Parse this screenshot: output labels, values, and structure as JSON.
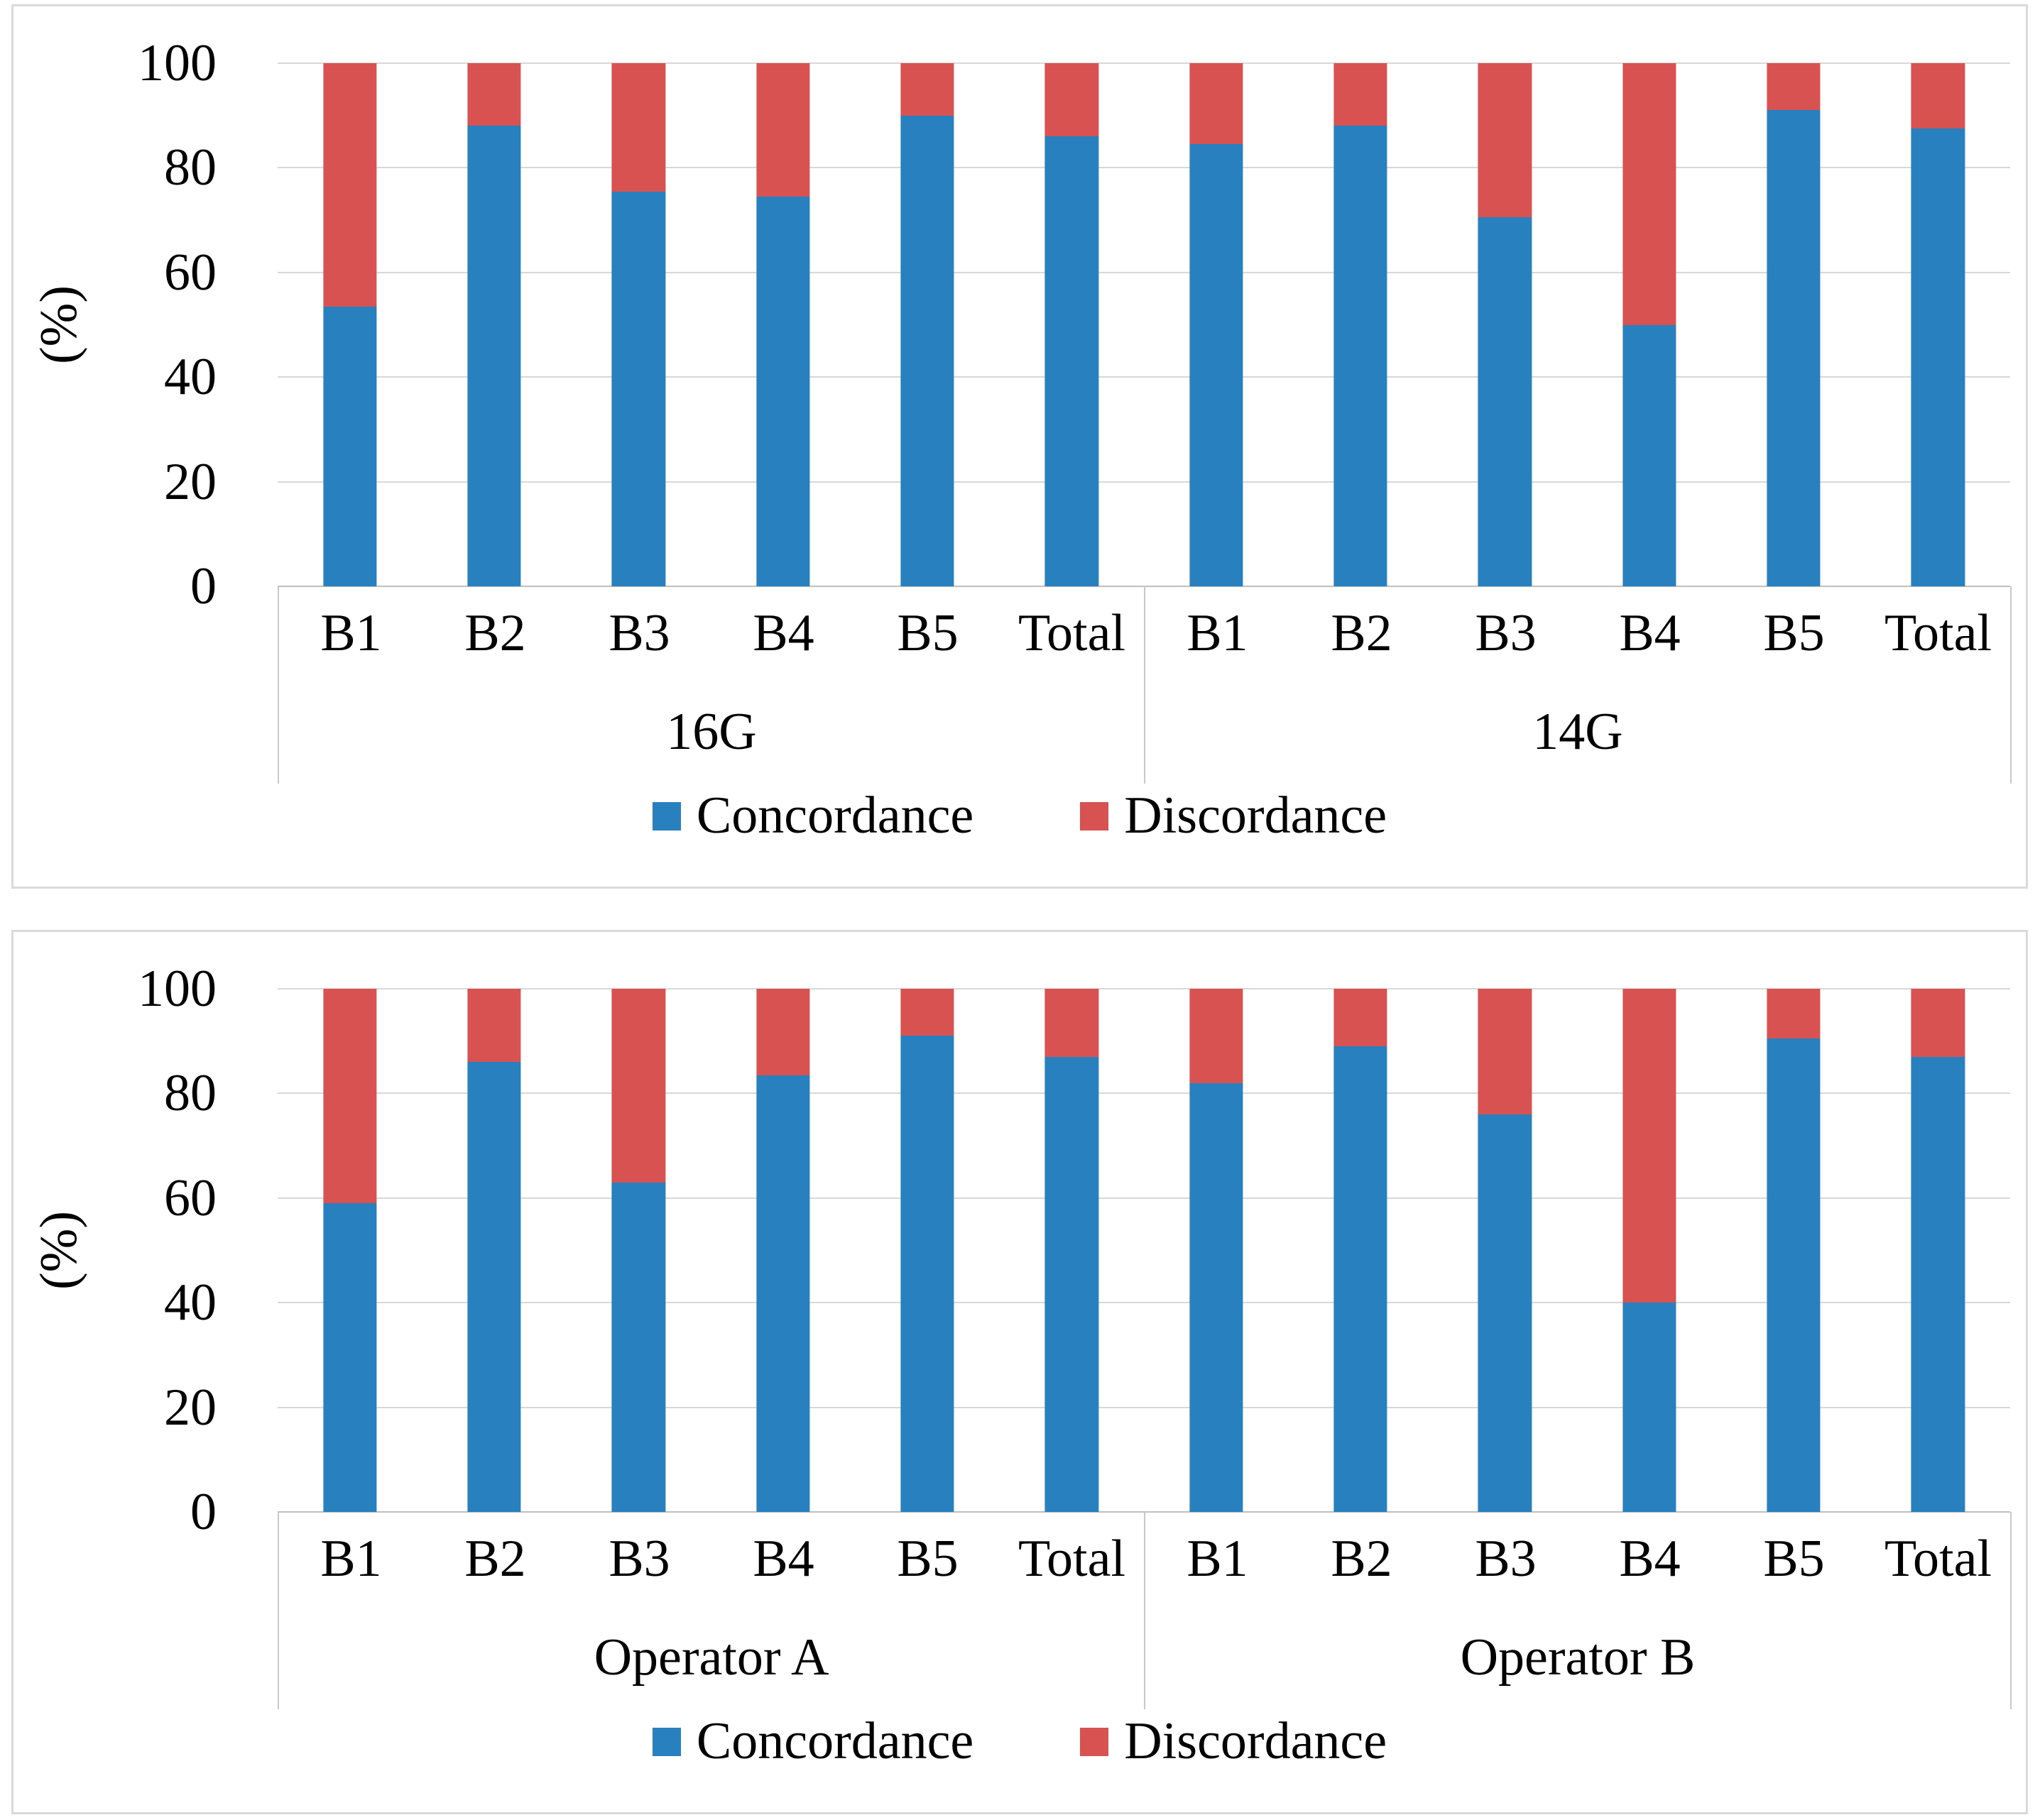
{
  "colors": {
    "concordance": "#2880BE",
    "discordance": "#D85252",
    "gridline": "#D8D8D8",
    "axis_line": "#BFBFBF",
    "divider_line": "#C8C8C8",
    "panel_border": "#DADADA",
    "text": "#000000",
    "background": "#FFFFFF"
  },
  "legend": {
    "items": [
      {
        "label": "Concordance",
        "color_key": "concordance"
      },
      {
        "label": "Discordance",
        "color_key": "discordance"
      }
    ]
  },
  "chart_data": [
    {
      "type": "bar",
      "stacked": true,
      "grid": true,
      "legend_position": "bottom",
      "title": "",
      "xlabel": "",
      "ylabel": "(%)",
      "ylim": [
        0,
        100
      ],
      "yticks": [
        100,
        80,
        60,
        40,
        20,
        0
      ],
      "categories": [
        "B1",
        "B2",
        "B3",
        "B4",
        "B5",
        "Total"
      ],
      "groups": [
        {
          "label": "16G",
          "series": [
            {
              "name": "Concordance",
              "values": [
                53.5,
                88,
                75.5,
                74.5,
                90,
                86
              ]
            },
            {
              "name": "Discordance",
              "values": [
                46.5,
                12,
                24.5,
                25.5,
                10,
                14
              ]
            }
          ]
        },
        {
          "label": "14G",
          "series": [
            {
              "name": "Concordance",
              "values": [
                84.5,
                88,
                70.5,
                50,
                91,
                87.5
              ]
            },
            {
              "name": "Discordance",
              "values": [
                15.5,
                12,
                29.5,
                50,
                9,
                12.5
              ]
            }
          ]
        }
      ]
    },
    {
      "type": "bar",
      "stacked": true,
      "grid": true,
      "legend_position": "bottom",
      "title": "",
      "xlabel": "",
      "ylabel": "(%)",
      "ylim": [
        0,
        100
      ],
      "yticks": [
        100,
        80,
        60,
        40,
        20,
        0
      ],
      "categories": [
        "B1",
        "B2",
        "B3",
        "B4",
        "B5",
        "Total"
      ],
      "groups": [
        {
          "label": "Operator A",
          "series": [
            {
              "name": "Concordance",
              "values": [
                59,
                86,
                63,
                83.5,
                91,
                87
              ]
            },
            {
              "name": "Discordance",
              "values": [
                41,
                14,
                37,
                16.5,
                9,
                13
              ]
            }
          ]
        },
        {
          "label": "Operator B",
          "series": [
            {
              "name": "Concordance",
              "values": [
                82,
                89,
                76,
                40,
                90.5,
                87
              ]
            },
            {
              "name": "Discordance",
              "values": [
                18,
                11,
                24,
                60,
                9.5,
                13
              ]
            }
          ]
        }
      ]
    }
  ]
}
